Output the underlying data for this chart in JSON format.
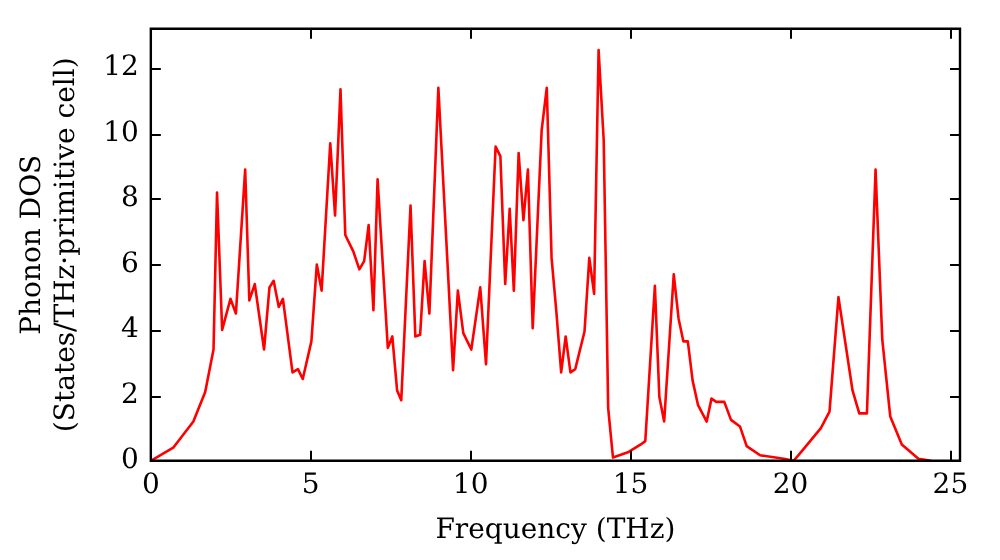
{
  "chart_data": {
    "type": "line",
    "xlabel": "Frequency (THz)",
    "ylabel": "Phonon DOS\n(States/THz·primitive cell)",
    "x": [
      0,
      0.7,
      1.33,
      1.7,
      1.96,
      2.07,
      2.23,
      2.49,
      2.66,
      2.95,
      3.08,
      3.25,
      3.54,
      3.71,
      3.84,
      4.0,
      4.13,
      4.43,
      4.6,
      4.75,
      5.02,
      5.19,
      5.34,
      5.61,
      5.76,
      5.93,
      6.08,
      6.33,
      6.52,
      6.67,
      6.81,
      6.96,
      7.09,
      7.41,
      7.55,
      7.7,
      7.83,
      8.12,
      8.27,
      8.42,
      8.56,
      8.71,
      8.99,
      9.45,
      9.6,
      9.77,
      10.02,
      10.3,
      10.48,
      10.78,
      10.93,
      11.08,
      11.22,
      11.35,
      11.5,
      11.65,
      11.79,
      11.94,
      12.22,
      12.38,
      12.53,
      12.68,
      12.83,
      12.97,
      13.12,
      13.27,
      13.56,
      13.71,
      13.86,
      14.0,
      14.16,
      14.3,
      14.45,
      14.94,
      15.32,
      15.46,
      15.76,
      15.9,
      16.05,
      16.35,
      16.5,
      16.65,
      16.79,
      16.94,
      17.11,
      17.38,
      17.53,
      17.68,
      17.93,
      18.14,
      18.42,
      18.63,
      19.05,
      19.79,
      20.1,
      20.42,
      20.95,
      21.22,
      21.5,
      21.94,
      22.15,
      22.39,
      22.66,
      22.87,
      23.12,
      23.48,
      24.0,
      24.4
    ],
    "series": [
      {
        "color": "#ff0000",
        "values": [
          0,
          0.4,
          1.2,
          2.1,
          3.4,
          8.2,
          4.0,
          4.95,
          4.5,
          8.9,
          4.9,
          5.4,
          3.4,
          5.3,
          5.5,
          4.7,
          4.95,
          2.7,
          2.8,
          2.5,
          3.65,
          6.0,
          5.2,
          9.7,
          7.5,
          11.35,
          6.9,
          6.4,
          5.85,
          6.1,
          7.2,
          4.6,
          8.6,
          3.45,
          3.8,
          2.15,
          1.85,
          7.8,
          3.8,
          3.85,
          6.1,
          4.5,
          11.4,
          2.77,
          5.2,
          3.9,
          3.4,
          5.3,
          2.95,
          9.6,
          9.3,
          5.4,
          7.7,
          5.2,
          9.4,
          7.35,
          8.9,
          4.05,
          10.1,
          11.4,
          6.2,
          4.55,
          2.7,
          3.8,
          2.7,
          2.8,
          3.95,
          6.2,
          5.1,
          12.55,
          9.8,
          1.6,
          0.1,
          0.27,
          0.5,
          0.6,
          5.35,
          1.95,
          1.2,
          5.7,
          4.35,
          3.65,
          3.65,
          2.45,
          1.7,
          1.2,
          1.9,
          1.8,
          1.8,
          1.25,
          1.05,
          0.45,
          0.17,
          0.06,
          0,
          0.37,
          1.0,
          1.5,
          5.0,
          2.15,
          1.45,
          1.45,
          8.9,
          3.7,
          1.35,
          0.5,
          0.06,
          0
        ]
      }
    ],
    "xlim": [
      0,
      25.3
    ],
    "ylim": [
      0,
      13.2
    ],
    "xticks": [
      0,
      5,
      10,
      15,
      20,
      25
    ],
    "yticks": [
      0,
      2,
      4,
      6,
      8,
      10,
      12
    ],
    "grid": false,
    "legend": false,
    "marker": "none",
    "line_style": "solid"
  }
}
